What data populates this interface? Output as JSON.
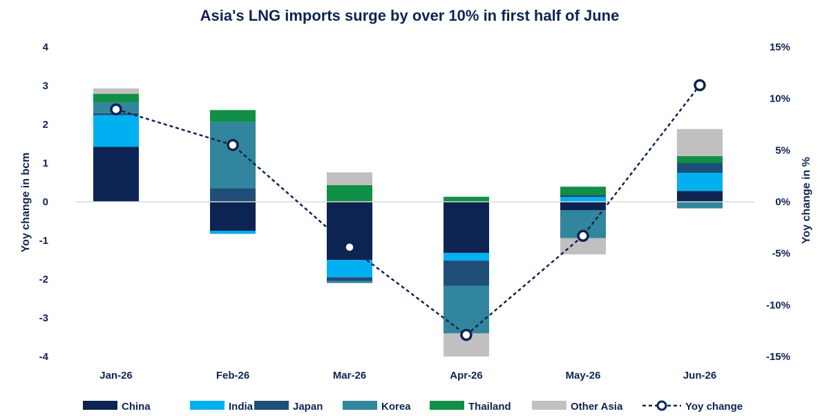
{
  "chart_data": {
    "type": "bar",
    "stacked": true,
    "title": "Asia's LNG imports surge by over 10% in first half of June",
    "categories": [
      "Jan-26",
      "Feb-26",
      "Mar-26",
      "Apr-26",
      "May-26",
      "Jun-26"
    ],
    "ylabel": "Yoy change in bcm",
    "ylim": [
      -4,
      4
    ],
    "yticks": [
      "4",
      "3",
      "2",
      "1",
      "0",
      "-1",
      "-2",
      "-3",
      "-4"
    ],
    "y2label": "Yoy change in %",
    "y2lim": [
      -15,
      15
    ],
    "y2ticks": [
      "15%",
      "10%",
      "5%",
      "0%",
      "-5%",
      "-10%",
      "-15%"
    ],
    "legend_position": "bottom",
    "grid": false,
    "series": [
      {
        "name": "China",
        "color": "#0d2352",
        "values": [
          1.42,
          -0.75,
          -1.5,
          -1.32,
          -0.22,
          0.28
        ]
      },
      {
        "name": "India",
        "color": "#00b0f0",
        "values": [
          0.82,
          -0.08,
          -0.45,
          -0.2,
          0.12,
          0.47
        ]
      },
      {
        "name": "Japan",
        "color": "#1f4e79",
        "values": [
          0.05,
          0.35,
          -0.1,
          -0.65,
          0.05,
          0.25
        ]
      },
      {
        "name": "Korea",
        "color": "#31859c",
        "values": [
          0.28,
          1.72,
          -0.05,
          -1.23,
          -0.72,
          -0.17
        ]
      },
      {
        "name": "Thailand",
        "color": "#109046",
        "values": [
          0.22,
          0.3,
          0.43,
          0.13,
          0.22,
          0.18
        ]
      },
      {
        "name": "Other Asia",
        "color": "#c0c0c0",
        "values": [
          0.14,
          0.0,
          0.33,
          -0.6,
          -0.42,
          0.7
        ]
      }
    ],
    "line": {
      "name": "Yoy change",
      "color": "#0d2352",
      "axis": "right",
      "values": [
        8.95,
        5.5,
        -4.4,
        -12.9,
        -3.3,
        11.3
      ]
    }
  }
}
